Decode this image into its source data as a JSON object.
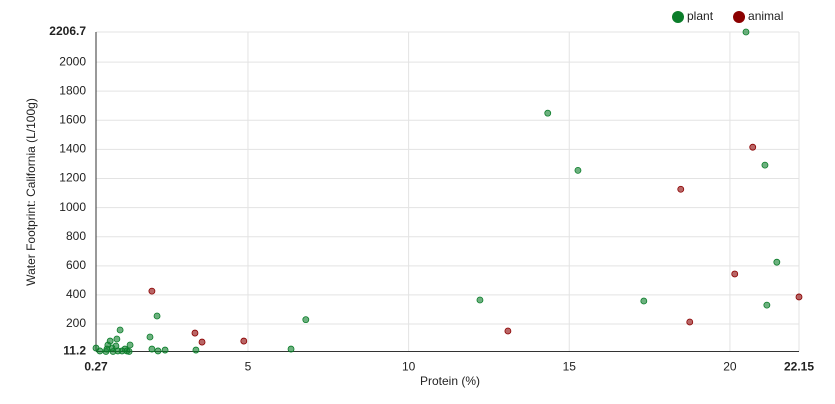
{
  "chart_data": {
    "type": "scatter",
    "x_label": "Protein (%)",
    "y_label": "Water Footprint: California (L/100g)",
    "xlim": [
      0.27,
      22.15
    ],
    "ylim": [
      11.2,
      2206.7
    ],
    "xticks": [
      0.27,
      5,
      10,
      15,
      20,
      22.15
    ],
    "yticks": [
      11.2,
      200,
      400,
      600,
      800,
      1000,
      1200,
      1400,
      1600,
      1800,
      2000,
      2206.7
    ],
    "grid": true,
    "legend": "top-right",
    "series": [
      {
        "name": "plant",
        "color": "#0b7d2a",
        "x": [
          20.5,
          14.33,
          15.27,
          21.09,
          21.46,
          12.22,
          17.32,
          21.15,
          6.8,
          6.34,
          2.17,
          1.95,
          1.02,
          0.92,
          2.01,
          2.2,
          2.42,
          3.38,
          0.27,
          0.39,
          0.61,
          0.64,
          0.71,
          0.77,
          0.8,
          0.89,
          0.95,
          1.08,
          1.17,
          1.23,
          1.33,
          1.3,
          0.58
        ],
        "values": [
          2206.7,
          1649,
          1256,
          1292,
          625,
          365,
          358,
          330,
          230,
          28,
          255,
          111,
          159,
          97,
          28,
          15,
          21,
          21,
          35,
          15,
          28,
          56,
          83,
          35,
          11.2,
          49,
          15,
          15,
          28,
          15,
          56,
          11.2,
          11.2
        ]
      },
      {
        "name": "animal",
        "color": "#8b0000",
        "x": [
          20.71,
          18.47,
          22.15,
          20.15,
          18.75,
          13.09,
          2.01,
          3.35,
          3.57,
          4.87
        ],
        "values": [
          1415,
          1126,
          386,
          544,
          214,
          152,
          426,
          138,
          76,
          83
        ]
      }
    ]
  }
}
